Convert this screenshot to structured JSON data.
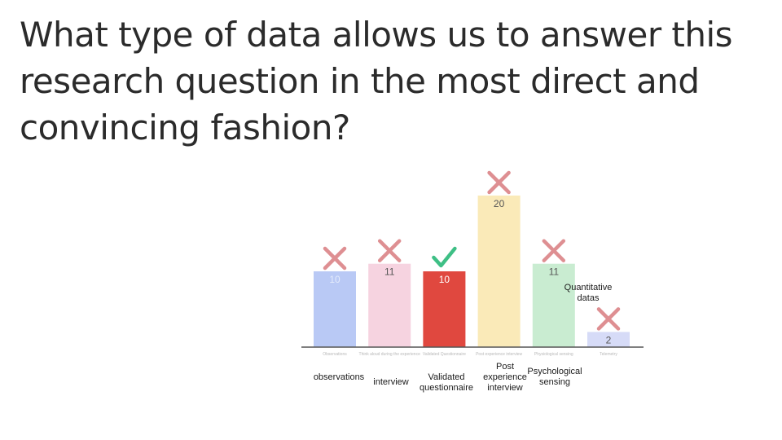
{
  "question": "What type of data allows us to answer this research question in the most direct and convincing fashion?",
  "chart_data": {
    "type": "bar",
    "categories": [
      "Observations",
      "Think aloud during the experience",
      "Validated Questionnaire",
      "Post experience interview",
      "Physiological sensing",
      "Telemetry"
    ],
    "values": [
      10,
      11,
      10,
      20,
      11,
      2
    ],
    "value_labels": [
      "10",
      "11",
      "10",
      "20",
      "11",
      "2"
    ],
    "colors": [
      "#b9c9f5",
      "#f6d3e0",
      "#e0483f",
      "#faeab8",
      "#c9ecd1",
      "#d6dbf7"
    ],
    "marks": [
      "cross",
      "cross",
      "check",
      "cross",
      "cross",
      "cross"
    ],
    "mark_colors": {
      "cross": "#de8f92",
      "check": "#3ebf85"
    },
    "ylim": [
      0,
      20
    ],
    "grid": false
  },
  "annotations": {
    "observations": "observations",
    "interview": "interview",
    "validated": "Validated\nquestionnaire",
    "post": "Post\nexperience\ninterview",
    "psych": "Psychological\nsensing",
    "quant": "Quantitative\ndatas"
  }
}
